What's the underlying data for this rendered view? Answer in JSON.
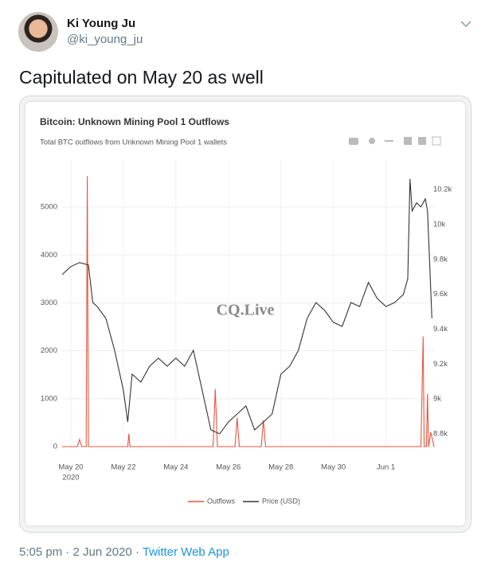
{
  "tweet": {
    "name": "Ki Young Ju",
    "handle": "@ki_young_ju",
    "text": "Capitulated on May 20 as well",
    "time": "5:05 pm · 2 Jun 2020",
    "separator": "·",
    "source": "Twitter Web App"
  },
  "chart_data": {
    "type": "line",
    "title": "Bitcoin: Unknown Mining Pool 1 Outflows",
    "subtitle": "Total BTC outflows from Unknown Mining Pool 1 wallets",
    "watermark": "CQ.Live",
    "xlim": [
      "2020-05-19T16:00",
      "2020-06-02T20:00"
    ],
    "xticks": [
      {
        "value": "2020-05-20T00:00",
        "label": "May 20"
      },
      {
        "value": "2020-05-22T00:00",
        "label": "May 22"
      },
      {
        "value": "2020-05-24T00:00",
        "label": "May 24"
      },
      {
        "value": "2020-05-26T00:00",
        "label": "May 26"
      },
      {
        "value": "2020-05-28T00:00",
        "label": "May 28"
      },
      {
        "value": "2020-05-30T00:00",
        "label": "May 30"
      },
      {
        "value": "2020-06-01T00:00",
        "label": "Jun 1"
      }
    ],
    "x_year_label": "2020",
    "ylim": [
      0,
      6000
    ],
    "yticks": [
      0,
      1000,
      2000,
      3000,
      4000,
      5000
    ],
    "y2lim": [
      8727,
      10374
    ],
    "y2ticks": [
      {
        "value": 8800,
        "label": "8.8k"
      },
      {
        "value": 9000,
        "label": "9k"
      },
      {
        "value": 9200,
        "label": "9.2k"
      },
      {
        "value": 9400,
        "label": "9.4k"
      },
      {
        "value": 9600,
        "label": "9.6k"
      },
      {
        "value": 9800,
        "label": "9.8k"
      },
      {
        "value": 10000,
        "label": "10k"
      },
      {
        "value": 10200,
        "label": "10.2k"
      }
    ],
    "grid": true,
    "series": [
      {
        "name": "Outflows",
        "color": "#e8553e",
        "x": [
          "2020-05-19T16:00",
          "2020-05-20T06:00",
          "2020-05-20T08:00",
          "2020-05-20T10:00",
          "2020-05-20T14:00",
          "2020-05-20T15:00",
          "2020-05-20T16:00",
          "2020-05-22T04:00",
          "2020-05-22T05:00",
          "2020-05-22T06:00",
          "2020-05-25T10:00",
          "2020-05-25T12:00",
          "2020-05-25T14:00",
          "2020-05-26T06:00",
          "2020-05-26T08:00",
          "2020-05-26T10:00",
          "2020-05-27T06:00",
          "2020-05-27T08:00",
          "2020-05-27T10:00",
          "2020-06-02T08:00",
          "2020-06-02T10:00",
          "2020-06-02T11:00",
          "2020-06-02T13:00",
          "2020-06-02T14:00",
          "2020-06-02T15:00",
          "2020-06-02T17:00",
          "2020-06-02T20:00"
        ],
        "values": [
          0,
          0,
          150,
          0,
          0,
          5650,
          0,
          0,
          270,
          0,
          0,
          1200,
          0,
          0,
          600,
          0,
          0,
          550,
          0,
          0,
          2300,
          0,
          0,
          1100,
          0,
          300,
          0
        ]
      },
      {
        "name": "Price (USD)",
        "color": "#333333",
        "axis": "y2",
        "x": [
          "2020-05-19T16:00",
          "2020-05-20T00:00",
          "2020-05-20T08:00",
          "2020-05-20T16:00",
          "2020-05-20T20:00",
          "2020-05-21T00:00",
          "2020-05-21T08:00",
          "2020-05-21T16:00",
          "2020-05-22T00:00",
          "2020-05-22T04:00",
          "2020-05-22T08:00",
          "2020-05-22T16:00",
          "2020-05-23T00:00",
          "2020-05-23T08:00",
          "2020-05-23T16:00",
          "2020-05-24T00:00",
          "2020-05-24T08:00",
          "2020-05-24T16:00",
          "2020-05-25T00:00",
          "2020-05-25T08:00",
          "2020-05-25T16:00",
          "2020-05-26T00:00",
          "2020-05-26T08:00",
          "2020-05-26T16:00",
          "2020-05-27T00:00",
          "2020-05-27T08:00",
          "2020-05-27T16:00",
          "2020-05-28T00:00",
          "2020-05-28T08:00",
          "2020-05-28T16:00",
          "2020-05-29T00:00",
          "2020-05-29T08:00",
          "2020-05-29T16:00",
          "2020-05-30T00:00",
          "2020-05-30T08:00",
          "2020-05-30T16:00",
          "2020-05-31T00:00",
          "2020-05-31T08:00",
          "2020-05-31T16:00",
          "2020-06-01T00:00",
          "2020-06-01T08:00",
          "2020-06-01T12:00",
          "2020-06-01T16:00",
          "2020-06-01T20:00",
          "2020-06-01T22:00",
          "2020-06-02T00:00",
          "2020-06-02T04:00",
          "2020-06-02T08:00",
          "2020-06-02T12:00",
          "2020-06-02T14:00",
          "2020-06-02T18:00"
        ],
        "values": [
          9713,
          9759,
          9782,
          9768,
          9553,
          9530,
          9462,
          9279,
          9051,
          8868,
          9142,
          9097,
          9188,
          9234,
          9188,
          9234,
          9188,
          9279,
          9051,
          8823,
          8800,
          8868,
          8914,
          8960,
          8823,
          8868,
          8914,
          9142,
          9188,
          9279,
          9462,
          9553,
          9508,
          9439,
          9416,
          9553,
          9530,
          9668,
          9576,
          9530,
          9553,
          9576,
          9599,
          9690,
          10261,
          10078,
          10124,
          10101,
          10147,
          10078,
          9462
        ]
      }
    ]
  }
}
